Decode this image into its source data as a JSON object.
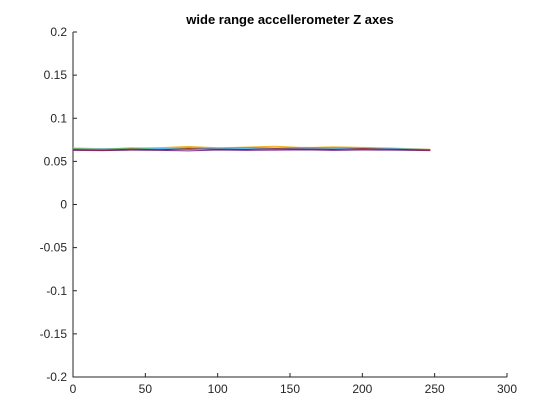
{
  "chart_data": {
    "type": "line",
    "title": "wide range accellerometer Z axes",
    "xlabel": "",
    "ylabel": "",
    "xlim": [
      0,
      300
    ],
    "ylim": [
      -0.2,
      0.2
    ],
    "x_ticks": [
      0,
      50,
      100,
      150,
      200,
      250,
      300
    ],
    "x_tick_labels": [
      "0",
      "50",
      "100",
      "150",
      "200",
      "250",
      "300"
    ],
    "y_ticks": [
      0.2,
      0.15,
      0.1,
      0.05,
      0,
      -0.05,
      -0.1,
      -0.15,
      -0.2
    ],
    "y_tick_labels": [
      "0.2",
      "0.15",
      "0.1",
      "0.05",
      "0",
      "-0.05",
      "-0.1",
      "-0.15",
      "-0.2"
    ],
    "grid": false,
    "legend": "none",
    "x": [
      0,
      20,
      40,
      60,
      80,
      100,
      120,
      140,
      160,
      180,
      200,
      220,
      247
    ],
    "series": [
      {
        "color": "#0072BD",
        "values": [
          0.0645,
          0.0638,
          0.0642,
          0.0645,
          0.064,
          0.0648,
          0.0643,
          0.0646,
          0.0641,
          0.0647,
          0.0644,
          0.064,
          0.0635
        ]
      },
      {
        "color": "#D95319",
        "values": [
          0.0632,
          0.064,
          0.0636,
          0.0642,
          0.065,
          0.0638,
          0.0644,
          0.0652,
          0.064,
          0.0645,
          0.065,
          0.0642,
          0.063
        ]
      },
      {
        "color": "#EDB120",
        "values": [
          0.0655,
          0.0648,
          0.0652,
          0.066,
          0.0672,
          0.0658,
          0.0665,
          0.0675,
          0.066,
          0.0668,
          0.0662,
          0.0655,
          0.064
        ]
      },
      {
        "color": "#7E2F8E",
        "values": [
          0.0628,
          0.0625,
          0.063,
          0.0628,
          0.0622,
          0.0632,
          0.0628,
          0.063,
          0.0634,
          0.0628,
          0.0632,
          0.063,
          0.0625
        ]
      },
      {
        "color": "#77AC30",
        "values": [
          0.065,
          0.0642,
          0.0655,
          0.0648,
          0.0658,
          0.065,
          0.066,
          0.0655,
          0.0662,
          0.0658,
          0.0652,
          0.0648,
          0.0635
        ]
      },
      {
        "color": "#4DBEEE",
        "values": [
          0.064,
          0.0646,
          0.0638,
          0.065,
          0.0644,
          0.0655,
          0.0648,
          0.065,
          0.0656,
          0.0652,
          0.0645,
          0.065,
          0.0638
        ]
      },
      {
        "color": "#A2142F",
        "values": [
          0.0636,
          0.063,
          0.064,
          0.0635,
          0.0645,
          0.064,
          0.0638,
          0.0646,
          0.0642,
          0.0638,
          0.0646,
          0.064,
          0.0632
        ]
      }
    ]
  }
}
